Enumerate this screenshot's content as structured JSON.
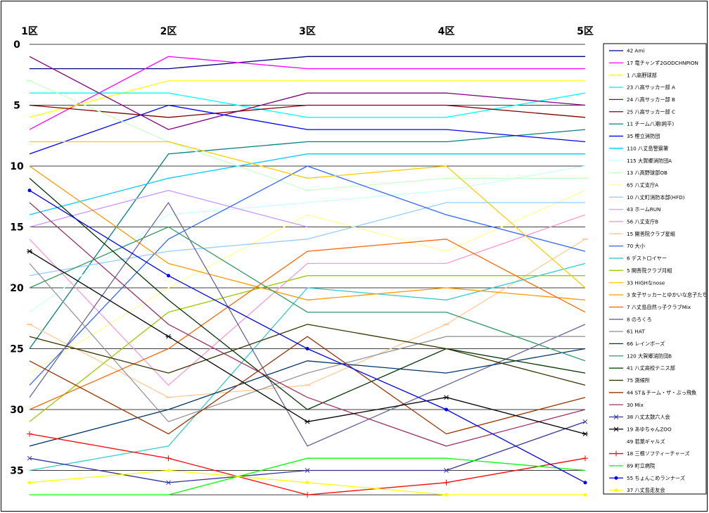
{
  "chart_data": {
    "type": "line",
    "categories": [
      "1区",
      "2区",
      "3区",
      "4区",
      "5区"
    ],
    "y_tick_labels": [
      "0",
      "5",
      "10",
      "15",
      "20",
      "25",
      "30",
      "35"
    ],
    "ylim": [
      0,
      37
    ],
    "y_inverted": true,
    "grid": true,
    "legend_position": "right",
    "series": [
      {
        "name": "42 Ami",
        "color": "#000080",
        "marker": "none",
        "values": [
          2,
          2,
          1,
          1,
          1
        ]
      },
      {
        "name": "17 竜チャンず2GODCHNPION",
        "color": "#ff00ff",
        "marker": "none",
        "values": [
          7,
          1,
          2,
          2,
          2
        ]
      },
      {
        "name": "1 八高野球部",
        "color": "#ffff00",
        "marker": "none",
        "values": [
          6,
          3,
          3,
          3,
          3
        ]
      },
      {
        "name": "23 八高サッカー部 A",
        "color": "#00ffff",
        "marker": "none",
        "values": [
          4,
          4,
          6,
          6,
          4
        ]
      },
      {
        "name": "24 八高サッカー部 B",
        "color": "#800080",
        "marker": "none",
        "values": [
          1,
          7,
          4,
          4,
          5
        ]
      },
      {
        "name": "25 八高サッカー部 C",
        "color": "#800000",
        "marker": "none",
        "values": [
          5,
          6,
          5,
          5,
          6
        ]
      },
      {
        "name": "11 チーム八潮(純平)",
        "color": "#008080",
        "marker": "none",
        "values": [
          25,
          9,
          8,
          8,
          7
        ]
      },
      {
        "name": "35 樫立消防団",
        "color": "#0000ff",
        "marker": "none",
        "values": [
          9,
          5,
          7,
          7,
          8
        ]
      },
      {
        "name": "110 八丈島警察署",
        "color": "#00ccff",
        "marker": "none",
        "values": [
          14,
          11,
          9,
          9,
          9
        ]
      },
      {
        "name": "115 大賀郷消防団A",
        "color": "#ccffff",
        "marker": "none",
        "values": [
          22,
          14,
          13,
          12,
          10
        ]
      },
      {
        "name": "13 八高野球部OB",
        "color": "#ccffcc",
        "marker": "dash",
        "values": [
          3,
          8,
          12,
          11,
          11
        ]
      },
      {
        "name": "65 八丈支庁A",
        "color": "#ffff99",
        "marker": "none",
        "values": [
          27,
          20,
          14,
          17,
          12
        ]
      },
      {
        "name": "10 八丈町消防本部(HFD)",
        "color": "#99ccff",
        "marker": "none",
        "values": [
          19,
          17,
          16,
          13,
          13
        ]
      },
      {
        "name": "43 ホームRUN",
        "color": "#ff99cc",
        "marker": "none",
        "values": [
          16,
          28,
          18,
          18,
          14
        ]
      },
      {
        "name": "56 八丈支庁B",
        "color": "#cc99ff",
        "marker": "none",
        "values": [
          15,
          12,
          15,
          null,
          null
        ]
      },
      {
        "name": "15 開善院クラブ星組",
        "color": "#ffcc99",
        "marker": "dash",
        "values": [
          23,
          29,
          28,
          23,
          16
        ]
      },
      {
        "name": "70 大小",
        "color": "#3366ff",
        "marker": "none",
        "values": [
          28,
          16,
          10,
          14,
          17
        ]
      },
      {
        "name": "6 デストロイヤー",
        "color": "#33cccc",
        "marker": "none",
        "values": [
          35,
          33,
          20,
          21,
          18
        ]
      },
      {
        "name": "5 開善院クラブ月組",
        "color": "#99cc00",
        "marker": "none",
        "values": [
          31,
          22,
          19,
          19,
          19
        ]
      },
      {
        "name": "33 HIGHなnose",
        "color": "#ffcc00",
        "marker": "none",
        "values": [
          8,
          8,
          11,
          10,
          20
        ]
      },
      {
        "name": "3 女子サッカーとゆかいな息子たち",
        "color": "#ff9900",
        "marker": "none",
        "values": [
          10,
          18,
          21,
          20,
          21
        ]
      },
      {
        "name": "7 八丈島自然っ子クラブMix",
        "color": "#ff6600",
        "marker": "none",
        "values": [
          30,
          25,
          17,
          16,
          22
        ]
      },
      {
        "name": "8 のろくろ",
        "color": "#666699",
        "marker": "none",
        "values": [
          29,
          13,
          33,
          28,
          23
        ]
      },
      {
        "name": "61 HAT",
        "color": "#969696",
        "marker": "none",
        "values": [
          18,
          31,
          27,
          24,
          24
        ]
      },
      {
        "name": "66 レインボーズ",
        "color": "#003366",
        "marker": "none",
        "values": [
          33,
          30,
          26,
          27,
          25
        ]
      },
      {
        "name": "120 大賀郷消防団B",
        "color": "#339966",
        "marker": "none",
        "values": [
          20,
          15,
          22,
          22,
          26
        ]
      },
      {
        "name": "41 八丈高校テニス部",
        "color": "#003300",
        "marker": "none",
        "values": [
          11,
          21,
          30,
          25,
          27
        ]
      },
      {
        "name": "75 測候所",
        "color": "#333300",
        "marker": "none",
        "values": [
          24,
          27,
          23,
          25,
          28
        ]
      },
      {
        "name": "44 ST＆チーム・ザ・ぶっ飛魚",
        "color": "#993300",
        "marker": "none",
        "values": [
          26,
          32,
          24,
          32,
          29
        ]
      },
      {
        "name": "30 Mix",
        "color": "#993366",
        "marker": "none",
        "values": [
          13,
          23,
          29,
          33,
          30
        ]
      },
      {
        "name": "38 八丈太鼓六人会",
        "color": "#333399",
        "marker": "x",
        "values": [
          34,
          36,
          35,
          35,
          31
        ]
      },
      {
        "name": "19 あゆちゃんZOO",
        "color": "#000000",
        "marker": "star",
        "values": [
          17,
          24,
          31,
          29,
          32
        ]
      },
      {
        "name": "49 若葉ギャルズ",
        "color": "#ffffff",
        "marker": "none",
        "values": [
          null,
          null,
          null,
          null,
          null
        ]
      },
      {
        "name": "18 三根ソフティーチャーズ",
        "color": "#ff0000",
        "marker": "plus",
        "values": [
          32,
          34,
          37,
          36,
          34
        ]
      },
      {
        "name": "89 町立病院",
        "color": "#00ff00",
        "marker": "none",
        "values": [
          37,
          37,
          34,
          34,
          35
        ]
      },
      {
        "name": "55 ちょんこめランナーズ",
        "color": "#0000ee",
        "marker": "dot",
        "values": [
          12,
          19,
          25,
          30,
          36
        ]
      },
      {
        "name": "37 八丈島走友会",
        "color": "#ffff00",
        "marker": "dot",
        "values": [
          36,
          35,
          36,
          37,
          37
        ]
      }
    ]
  }
}
